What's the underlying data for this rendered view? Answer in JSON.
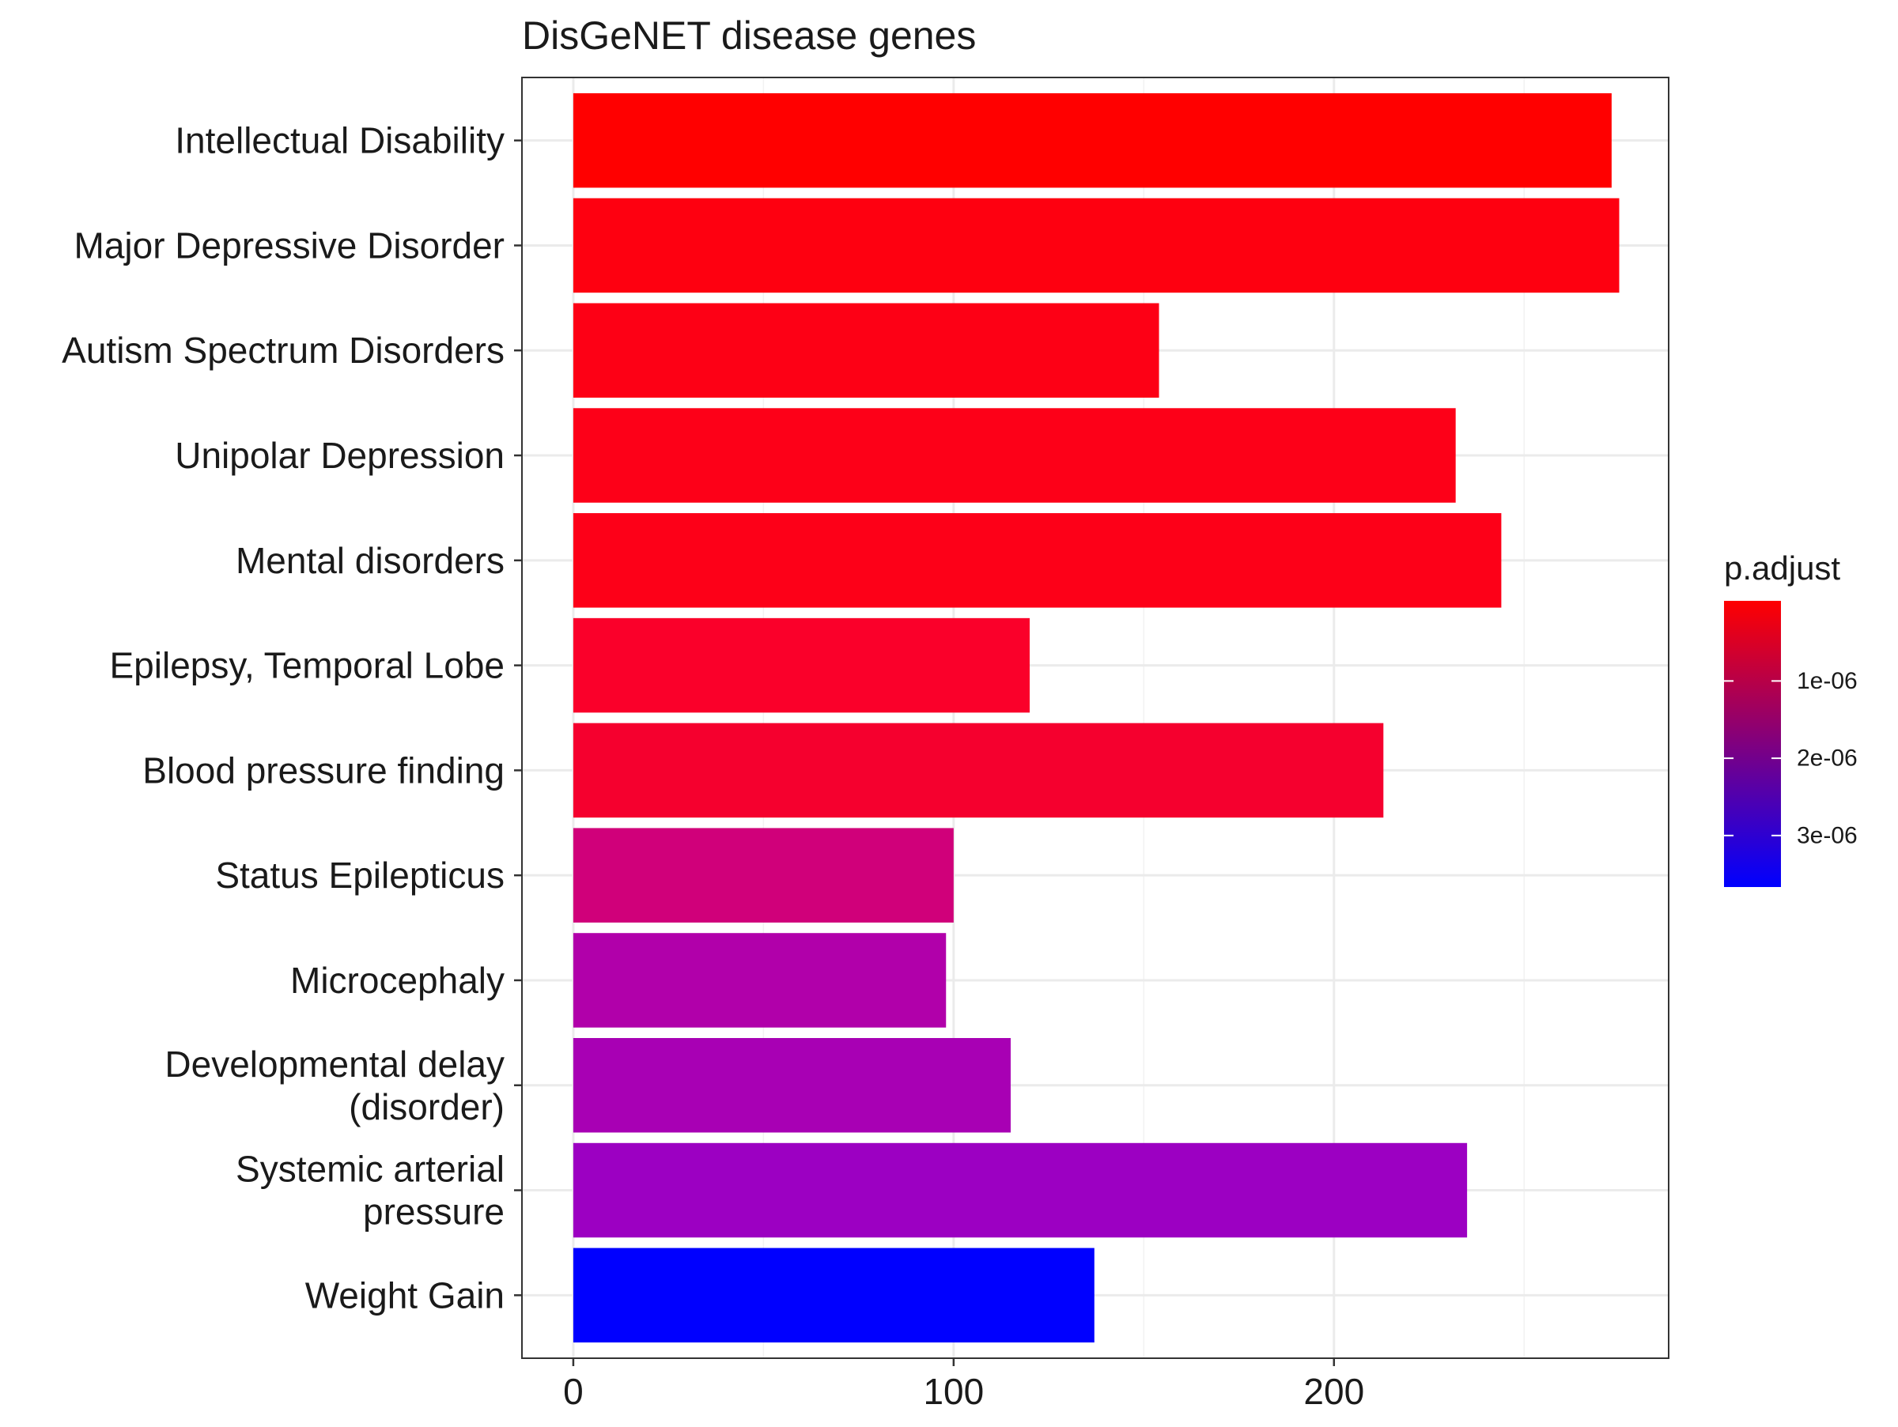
{
  "chart_data": {
    "type": "bar",
    "orientation": "horizontal",
    "title": "DisGeNET disease genes",
    "xlabel": "",
    "ylabel": "",
    "xlim": [
      -13.5,
      288
    ],
    "xticks": [
      0,
      100,
      200
    ],
    "minor_xticks": [
      50,
      150,
      250
    ],
    "grid": true,
    "categories": [
      "Intellectual Disability",
      "Major Depressive Disorder",
      "Autism Spectrum Disorders",
      "Unipolar Depression",
      "Mental disorders",
      "Epilepsy, Temporal Lobe",
      "Blood pressure finding",
      "Status Epilepticus",
      "Microcephaly",
      "Developmental delay (disorder)",
      "Systemic arterial pressure",
      "Weight Gain"
    ],
    "category_lines": [
      [
        "Intellectual Disability"
      ],
      [
        "Major Depressive Disorder"
      ],
      [
        "Autism Spectrum Disorders"
      ],
      [
        "Unipolar Depression"
      ],
      [
        "Mental disorders"
      ],
      [
        "Epilepsy, Temporal Lobe"
      ],
      [
        "Blood pressure finding"
      ],
      [
        "Status Epilepticus"
      ],
      [
        "Microcephaly"
      ],
      [
        "Developmental delay",
        "(disorder)"
      ],
      [
        "Systemic arterial",
        "pressure"
      ],
      [
        "Weight Gain"
      ]
    ],
    "values": [
      273,
      275,
      154,
      232,
      244,
      120,
      213,
      100,
      98,
      115,
      235,
      137
    ],
    "colors": [
      "#ff0000",
      "#fe0010",
      "#fd0015",
      "#fd0018",
      "#fd0018",
      "#fa002a",
      "#f5002e",
      "#d0007a",
      "#b100aa",
      "#a800b4",
      "#9c00c2",
      "#0000ff"
    ],
    "legend": {
      "title": "p.adjust",
      "position": "right",
      "gradient": [
        "#0000ff",
        "#ff0000"
      ],
      "ticks": [
        {
          "label": "1e-06",
          "frac": 0.72
        },
        {
          "label": "2e-06",
          "frac": 0.45
        },
        {
          "label": "3e-06",
          "frac": 0.18
        }
      ]
    }
  }
}
